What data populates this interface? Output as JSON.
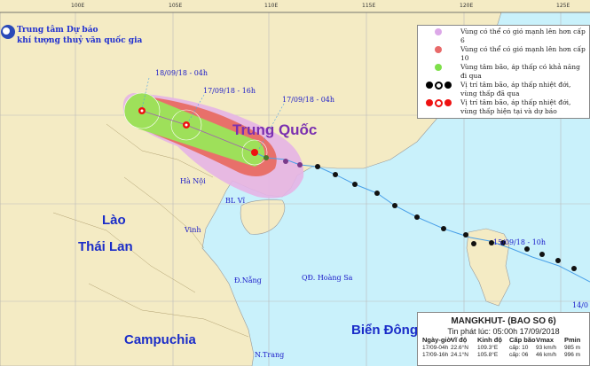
{
  "axis": {
    "longitudes": [
      "100E",
      "105E",
      "110E",
      "115E",
      "120E",
      "125E"
    ]
  },
  "organization": {
    "line1": "Trung tâm Dự báo",
    "line2": "khí tượng thuỷ văn quốc gia",
    "logo_text": "NCHMF"
  },
  "legend": {
    "items": [
      {
        "label": "Vùng có thể có gió mạnh lên hơn cấp 6",
        "color": "#dca8e8"
      },
      {
        "label": "Vùng có thể có gió mạnh lên hơn cấp 10",
        "color": "#e86a6a"
      },
      {
        "label": "Vùng tâm bão, áp thấp có khả năng đi qua",
        "color": "#7ee04a"
      },
      {
        "label": "Vị trí tâm bão, áp thấp nhiệt đới, vùng thấp đã qua",
        "color": "#000000"
      },
      {
        "label": "Vị trí tâm bão, áp thấp nhiệt đới, vùng thấp hiện tại và dự báo",
        "color": "#ee1111"
      }
    ]
  },
  "countries": {
    "china": "Trung Quốc",
    "laos": "Lào",
    "thailand": "Thái Lan",
    "cambodia": "Campuchia",
    "sea": "Biển Đông"
  },
  "cities": {
    "hanoi": "Hà Nội",
    "bachlongvi": "BL Vĩ",
    "vinh": "Vinh",
    "danang": "Đ.Nẵng",
    "hoangsa": "QĐ. Hoàng Sa",
    "nhatrang": "N.Trang"
  },
  "track_labels": {
    "t1": "18/09/18 - 04h",
    "t2": "17/09/18 - 16h",
    "t3": "17/09/18 - 04h",
    "t4": "15/09/18 - 10h",
    "t5": "14/0"
  },
  "info": {
    "title": "MANGKHUT- (BAO SO 6)",
    "issued": "Tin phát lúc: 05:00h 17/09/2018",
    "headers": [
      "Ngày-giờ",
      "Vĩ độ",
      "Kinh độ",
      "Cấp bão",
      "Vmax",
      "Pmin"
    ],
    "rows": [
      [
        "17/09-04h",
        "22.6°N",
        "109.3°E",
        "cấp: 10",
        "93 km/h",
        "985 m"
      ],
      [
        "17/09-16h",
        "24.1°N",
        "105.8°E",
        "cấp: 06",
        "46 km/h",
        "996 m"
      ]
    ]
  },
  "colors": {
    "land": "#f4ebc4",
    "sea": "#c9f1fb",
    "cone6": "#e6b4e6",
    "cone10": "#e8706a",
    "center_zone": "#9ee05a",
    "track": "#4aa0e8"
  }
}
